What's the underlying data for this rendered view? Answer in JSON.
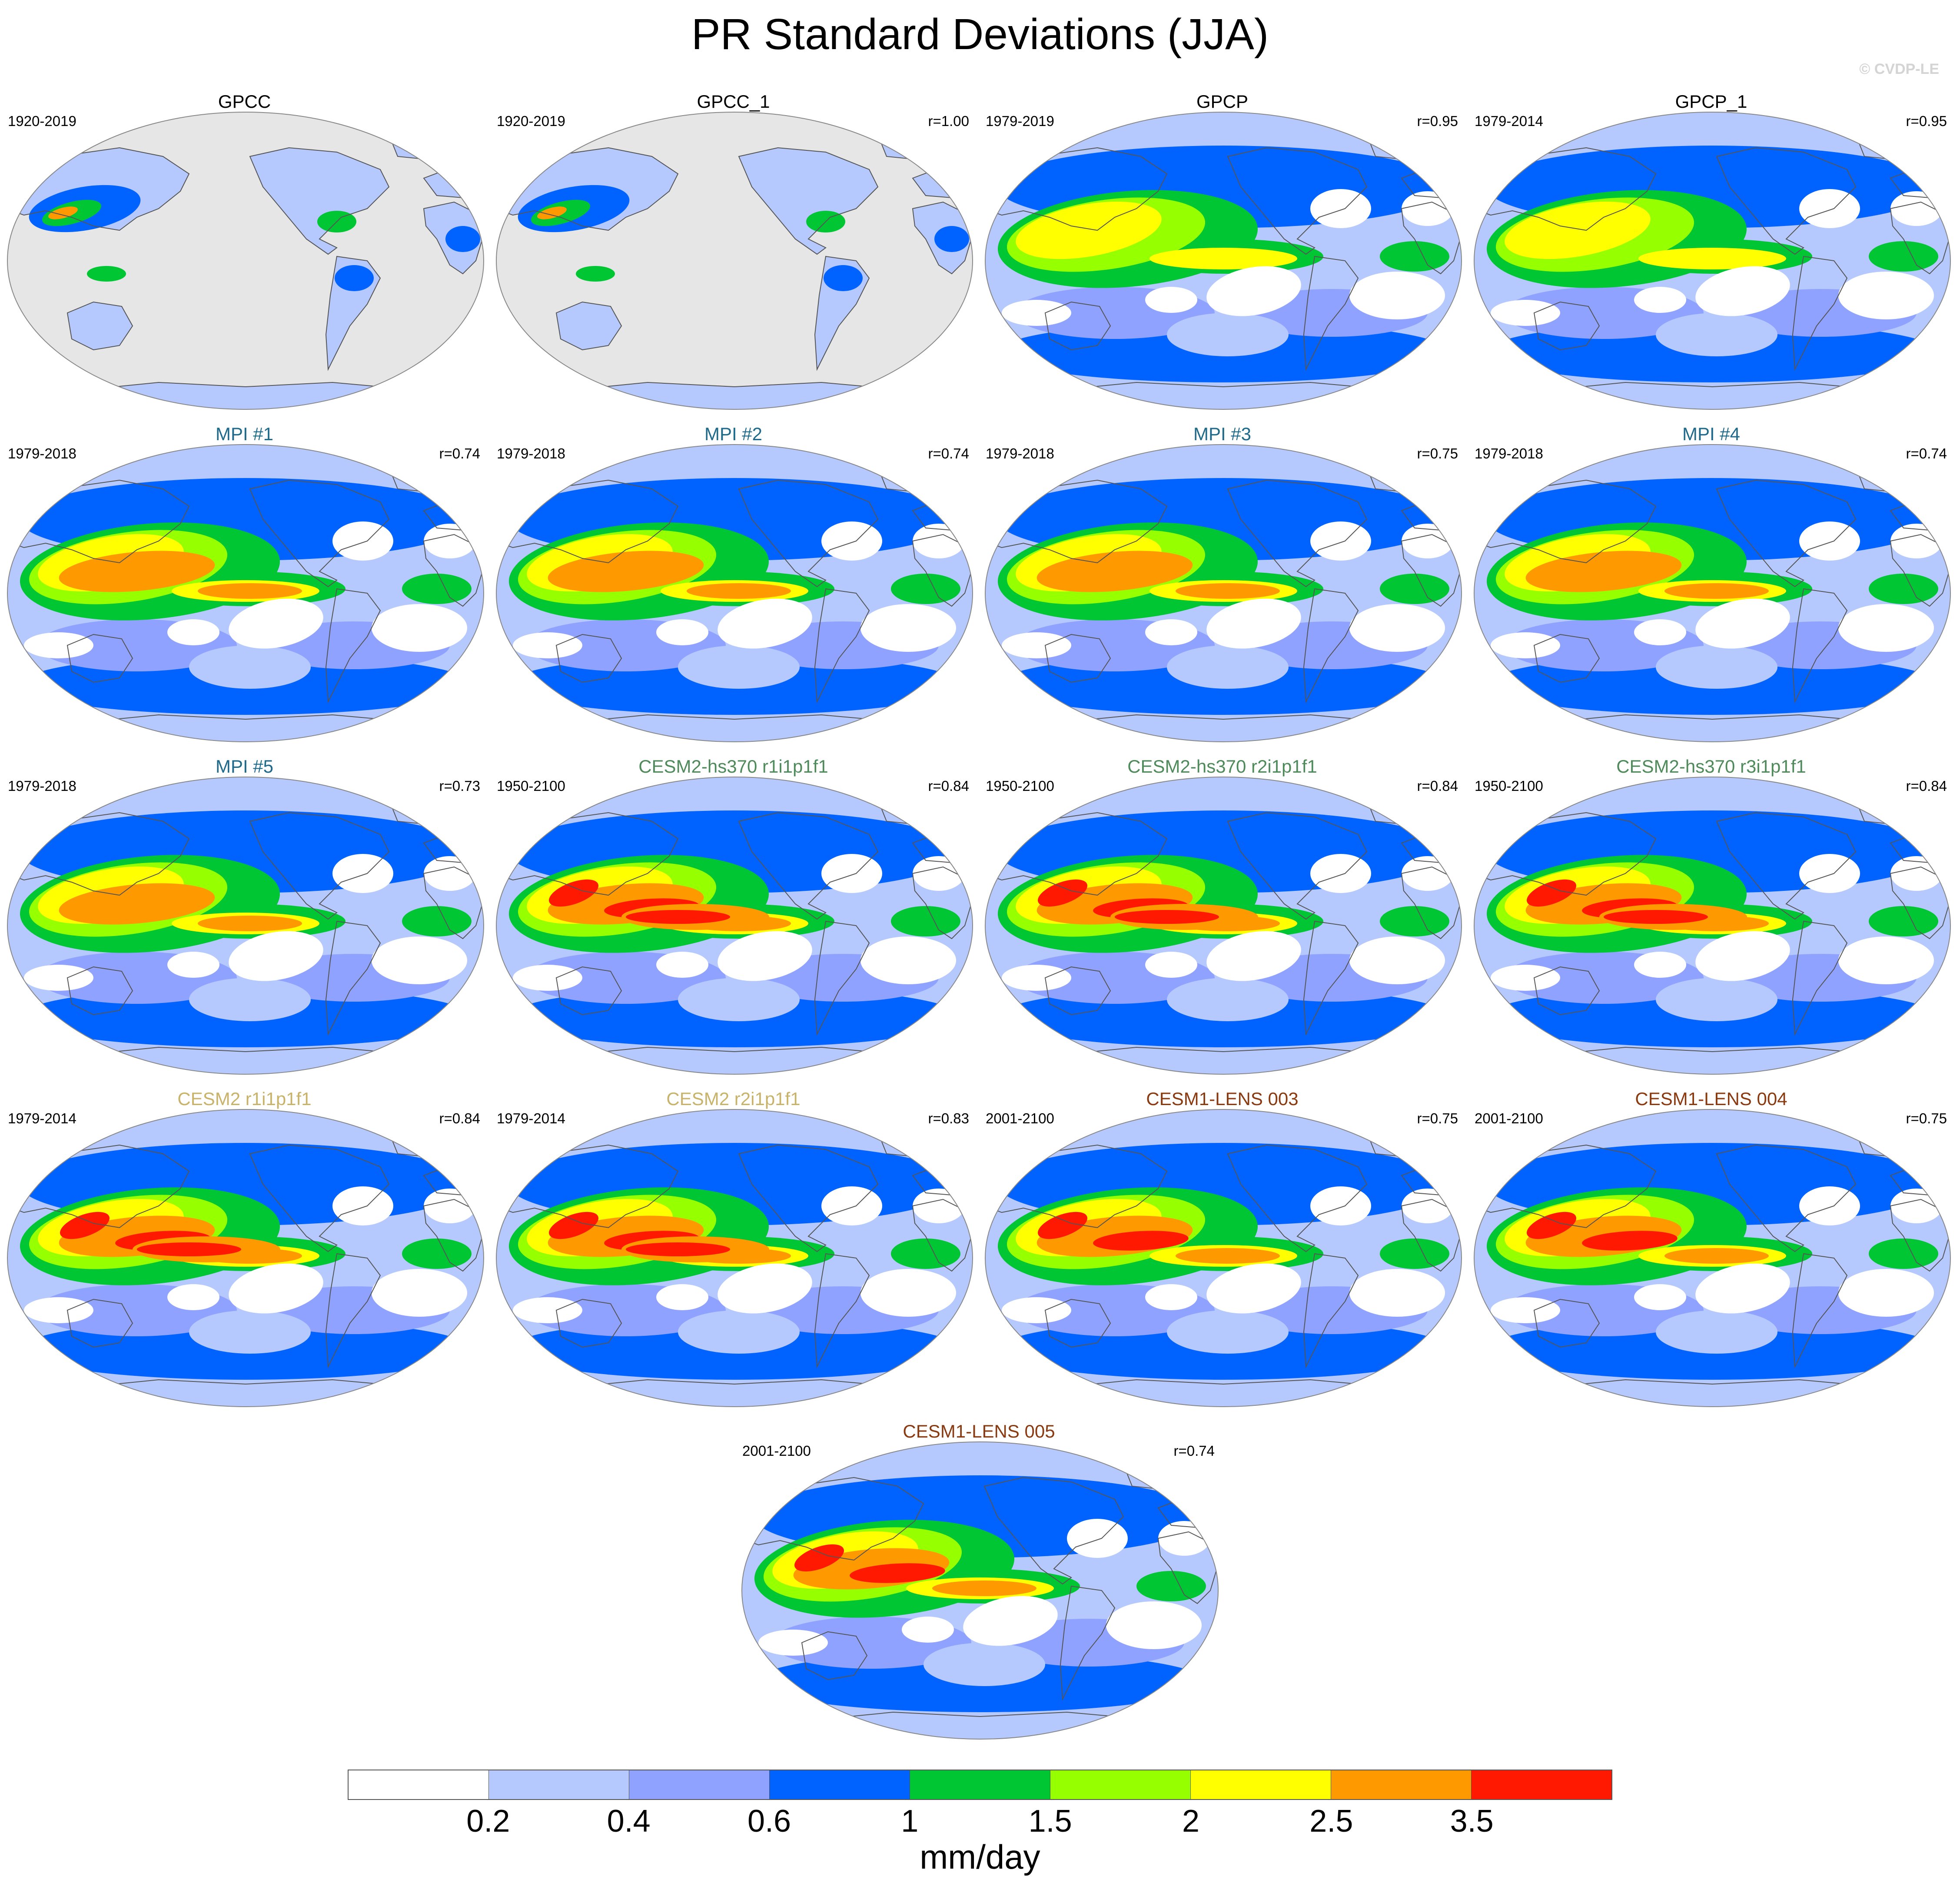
{
  "figure": {
    "title": "PR Standard Deviations (JJA)",
    "credit": "© CVDP-LE",
    "units": "mm/day"
  },
  "colorbar": {
    "ticks": [
      "0.2",
      "0.4",
      "0.6",
      "1",
      "1.5",
      "2",
      "2.5",
      "3.5"
    ],
    "colors": [
      "#ffffff",
      "#b5c9ff",
      "#8fa2ff",
      "#0063ff",
      "#00c633",
      "#96ff00",
      "#ffff00",
      "#ff9900",
      "#ff1900"
    ]
  },
  "panels": [
    {
      "title": "GPCC",
      "years": "1920-2019",
      "corr": "",
      "title_color": "#000000",
      "style": "obs_land"
    },
    {
      "title": "GPCC_1",
      "years": "1920-2019",
      "corr": "r=1.00",
      "title_color": "#000000",
      "style": "obs_land"
    },
    {
      "title": "GPCP",
      "years": "1979-2019",
      "corr": "r=0.95",
      "title_color": "#000000",
      "style": "obs"
    },
    {
      "title": "GPCP_1",
      "years": "1979-2014",
      "corr": "r=0.95",
      "title_color": "#000000",
      "style": "obs"
    },
    {
      "title": "MPI #1",
      "years": "1979-2018",
      "corr": "r=0.74",
      "title_color": "#1f6a8a",
      "style": "mpi"
    },
    {
      "title": "MPI #2",
      "years": "1979-2018",
      "corr": "r=0.74",
      "title_color": "#1f6a8a",
      "style": "mpi"
    },
    {
      "title": "MPI #3",
      "years": "1979-2018",
      "corr": "r=0.75",
      "title_color": "#1f6a8a",
      "style": "mpi"
    },
    {
      "title": "MPI #4",
      "years": "1979-2018",
      "corr": "r=0.74",
      "title_color": "#1f6a8a",
      "style": "mpi"
    },
    {
      "title": "MPI #5",
      "years": "1979-2018",
      "corr": "r=0.73",
      "title_color": "#1f6a8a",
      "style": "mpi"
    },
    {
      "title": "CESM2-hs370 r1i1p1f1",
      "years": "1950-2100",
      "corr": "r=0.84",
      "title_color": "#4e8a5a",
      "style": "cesm2hs"
    },
    {
      "title": "CESM2-hs370 r2i1p1f1",
      "years": "1950-2100",
      "corr": "r=0.84",
      "title_color": "#4e8a5a",
      "style": "cesm2hs"
    },
    {
      "title": "CESM2-hs370 r3i1p1f1",
      "years": "1950-2100",
      "corr": "r=0.84",
      "title_color": "#4e8a5a",
      "style": "cesm2hs"
    },
    {
      "title": "CESM2 r1i1p1f1",
      "years": "1979-2014",
      "corr": "r=0.84",
      "title_color": "#c9b36a",
      "style": "cesm2"
    },
    {
      "title": "CESM2 r2i1p1f1",
      "years": "1979-2014",
      "corr": "r=0.83",
      "title_color": "#c9b36a",
      "style": "cesm2"
    },
    {
      "title": "CESM1-LENS 003",
      "years": "2001-2100",
      "corr": "r=0.75",
      "title_color": "#8a3a10",
      "style": "cesm1"
    },
    {
      "title": "CESM1-LENS 004",
      "years": "2001-2100",
      "corr": "r=0.75",
      "title_color": "#8a3a10",
      "style": "cesm1"
    },
    {
      "title": "CESM1-LENS 005",
      "years": "2001-2100",
      "corr": "r=0.74",
      "title_color": "#8a3a10",
      "style": "cesm1"
    }
  ]
}
